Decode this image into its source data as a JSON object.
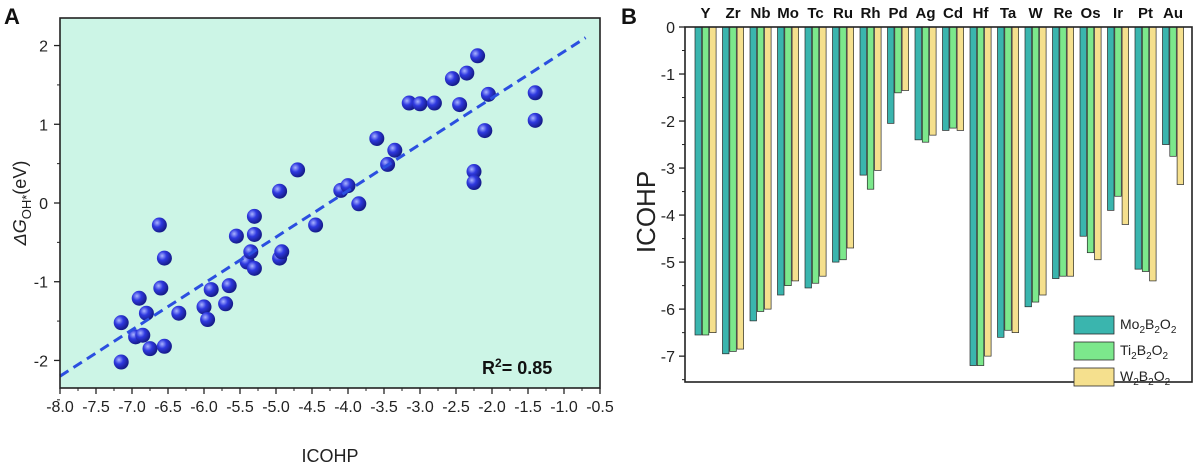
{
  "panels": {
    "a_label": "A",
    "b_label": "B"
  },
  "colors": {
    "a_background": "#ccf5e6",
    "point": "#2f39e0",
    "fit_line": "#2b4fe0",
    "mo2b2o2": "#3ab5ae",
    "ti2b2o2": "#7ce88c",
    "w2b2o2": "#f5e08e"
  },
  "chart_data": [
    {
      "type": "scatter",
      "title": "",
      "xlabel": "ICOHP",
      "ylabel_symbol": "ΔG",
      "ylabel_sub": "OH*",
      "ylabel_unit": "(eV)",
      "xlim": [
        -8.0,
        -0.5
      ],
      "ylim": [
        -2.35,
        2.35
      ],
      "xticks": [
        "-8.0",
        "-7.5",
        "-7.0",
        "-6.5",
        "-6.0",
        "-5.5",
        "-5.0",
        "-4.5",
        "-4.0",
        "-3.5",
        "-3.0",
        "-2.5",
        "-2.0",
        "-1.5",
        "-1.0",
        "-0.5"
      ],
      "yticks": [
        "2",
        "1",
        "0",
        "-1",
        "-2"
      ],
      "annotation": {
        "prefix": "R",
        "sup": "2",
        "suffix": "= 0.85"
      },
      "fit_line": {
        "x": [
          -8.0,
          -0.7
        ],
        "y": [
          -2.2,
          2.1
        ]
      },
      "points": [
        [
          -7.15,
          -2.02
        ],
        [
          -7.15,
          -1.52
        ],
        [
          -6.95,
          -1.7
        ],
        [
          -6.85,
          -1.68
        ],
        [
          -6.9,
          -1.21
        ],
        [
          -6.8,
          -1.4
        ],
        [
          -6.75,
          -1.85
        ],
        [
          -6.55,
          -1.82
        ],
        [
          -6.6,
          -1.08
        ],
        [
          -6.55,
          -0.7
        ],
        [
          -6.62,
          -0.28
        ],
        [
          -6.35,
          -1.4
        ],
        [
          -6.0,
          -1.32
        ],
        [
          -5.95,
          -1.48
        ],
        [
          -5.9,
          -1.1
        ],
        [
          -5.7,
          -1.28
        ],
        [
          -5.65,
          -1.05
        ],
        [
          -5.55,
          -0.42
        ],
        [
          -5.4,
          -0.75
        ],
        [
          -5.35,
          -0.62
        ],
        [
          -5.3,
          -0.4
        ],
        [
          -5.3,
          -0.83
        ],
        [
          -5.3,
          -0.17
        ],
        [
          -4.95,
          -0.7
        ],
        [
          -4.92,
          -0.62
        ],
        [
          -4.95,
          0.15
        ],
        [
          -4.7,
          0.42
        ],
        [
          -4.45,
          -0.28
        ],
        [
          -4.1,
          0.16
        ],
        [
          -4.0,
          0.22
        ],
        [
          -3.85,
          -0.01
        ],
        [
          -3.6,
          0.82
        ],
        [
          -3.45,
          0.49
        ],
        [
          -3.35,
          0.67
        ],
        [
          -3.15,
          1.27
        ],
        [
          -3.0,
          1.26
        ],
        [
          -2.8,
          1.27
        ],
        [
          -2.55,
          1.58
        ],
        [
          -2.45,
          1.25
        ],
        [
          -2.35,
          1.65
        ],
        [
          -2.2,
          1.87
        ],
        [
          -2.1,
          0.92
        ],
        [
          -2.05,
          1.38
        ],
        [
          -2.25,
          0.4
        ],
        [
          -2.25,
          0.26
        ],
        [
          -1.4,
          1.4
        ],
        [
          -1.4,
          1.05
        ]
      ]
    },
    {
      "type": "bar",
      "title": "",
      "xlabel": "",
      "ylabel": "ICOHP",
      "ylim": [
        -7.55,
        0
      ],
      "yticks": [
        "0",
        "-1",
        "-2",
        "-3",
        "-4",
        "-5",
        "-6",
        "-7"
      ],
      "categories": [
        "Y",
        "Zr",
        "Nb",
        "Mo",
        "Tc",
        "Ru",
        "Rh",
        "Pd",
        "Ag",
        "Cd",
        "Hf",
        "Ta",
        "W",
        "Re",
        "Os",
        "Ir",
        "Pt",
        "Au"
      ],
      "series": [
        {
          "name_base": "Mo",
          "name_parts": [
            "Mo",
            "2",
            "B",
            "2",
            "O",
            "2"
          ],
          "values": [
            -6.55,
            -6.95,
            -6.25,
            -5.7,
            -5.55,
            -5.0,
            -3.15,
            -2.05,
            -2.4,
            -2.2,
            -7.2,
            -6.6,
            -5.95,
            -5.35,
            -4.45,
            -3.9,
            -5.15,
            -2.5
          ]
        },
        {
          "name_base": "Ti",
          "name_parts": [
            "Ti",
            "2",
            "B",
            "2",
            "O",
            "2"
          ],
          "values": [
            -6.55,
            -6.9,
            -6.05,
            -5.5,
            -5.45,
            -4.95,
            -3.45,
            -1.4,
            -2.45,
            -2.15,
            -7.2,
            -6.45,
            -5.85,
            -5.3,
            -4.8,
            -3.6,
            -5.2,
            -2.75
          ]
        },
        {
          "name_base": "W",
          "name_parts": [
            "W",
            "2",
            "B",
            "2",
            "O",
            "2"
          ],
          "values": [
            -6.5,
            -6.85,
            -6.0,
            -5.4,
            -5.3,
            -4.7,
            -3.05,
            -1.35,
            -2.3,
            -2.2,
            -7.0,
            -6.5,
            -5.7,
            -5.3,
            -4.95,
            -4.2,
            -5.4,
            -3.35
          ]
        }
      ],
      "legend_position": "bottom-right"
    }
  ]
}
